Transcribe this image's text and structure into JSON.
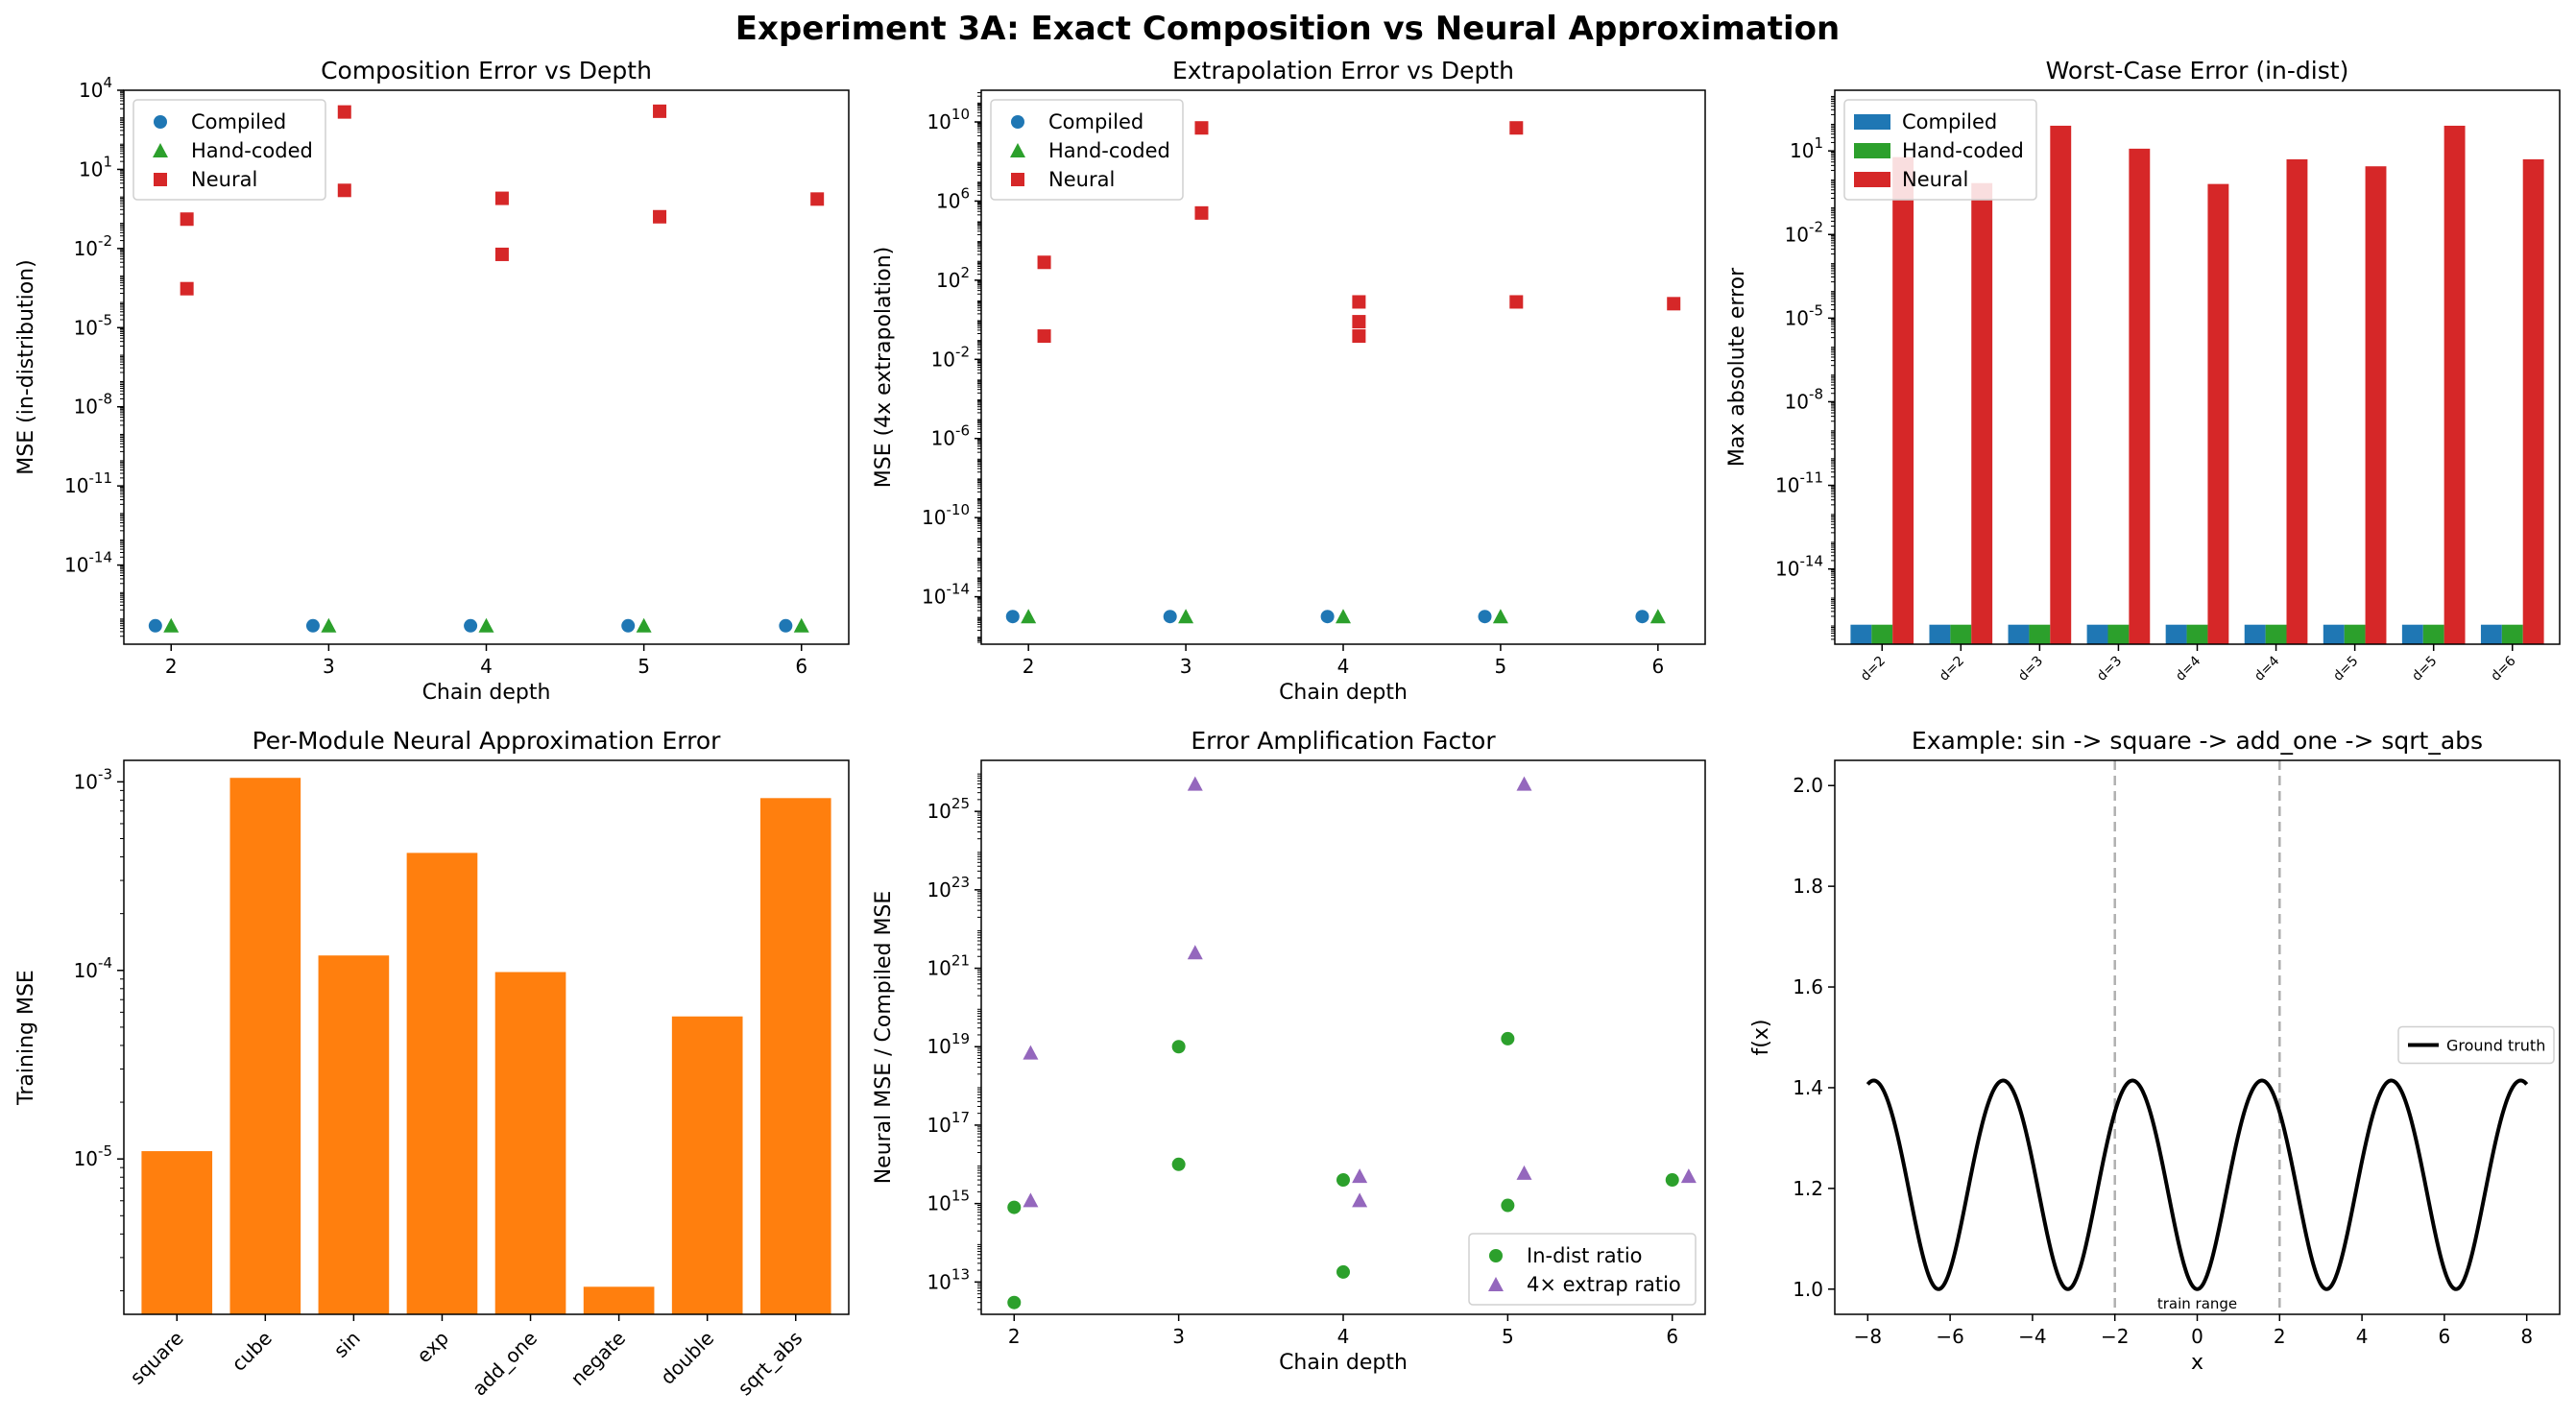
{
  "figure": {
    "suptitle": "Experiment 3A: Exact Composition vs Neural Approximation"
  },
  "colors": {
    "compiled": "#1f77b4",
    "handcoded": "#2ca02c",
    "neural": "#d62728",
    "orange": "#ff7f0e",
    "purple": "#9467bd",
    "green": "#2ca02c"
  },
  "chart_data": [
    {
      "id": "p1",
      "type": "scatter",
      "title": "Composition Error vs Depth",
      "xlabel": "Chain depth",
      "ylabel": "MSE (in-distribution)",
      "yscale": "log",
      "xlim": [
        1.7,
        6.3
      ],
      "ylim": [
        1e-17,
        10000
      ],
      "xticks": [
        2,
        3,
        4,
        5,
        6
      ],
      "yticks": [
        -14,
        -11,
        -8,
        -5,
        -2,
        1,
        4
      ],
      "legend": {
        "position": "top-left"
      },
      "series": [
        {
          "name": "Compiled",
          "marker": "circle",
          "color": "compiled",
          "points": [
            [
              1.9,
              5e-17
            ],
            [
              2.9,
              5e-17
            ],
            [
              3.9,
              5e-17
            ],
            [
              4.9,
              5e-17
            ],
            [
              5.9,
              5e-17
            ]
          ]
        },
        {
          "name": "Hand-coded",
          "marker": "triangle",
          "color": "handcoded",
          "points": [
            [
              2.0,
              5e-17
            ],
            [
              3.0,
              5e-17
            ],
            [
              4.0,
              5e-17
            ],
            [
              5.0,
              5e-17
            ],
            [
              6.0,
              5e-17
            ]
          ]
        },
        {
          "name": "Neural",
          "marker": "square",
          "color": "neural",
          "points": [
            [
              2.1,
              0.13
            ],
            [
              2.1,
              0.0003
            ],
            [
              3.1,
              1500
            ],
            [
              3.1,
              1.6
            ],
            [
              4.1,
              0.8
            ],
            [
              4.1,
              0.006
            ],
            [
              5.1,
              1600
            ],
            [
              5.1,
              0.16
            ],
            [
              6.1,
              0.75
            ]
          ]
        }
      ]
    },
    {
      "id": "p2",
      "type": "scatter",
      "title": "Extrapolation Error vs Depth",
      "xlabel": "Chain depth",
      "ylabel": "MSE (4x extrapolation)",
      "yscale": "log",
      "xlim": [
        1.7,
        6.3
      ],
      "ylim": [
        4e-17,
        400000000000.0
      ],
      "xticks": [
        2,
        3,
        4,
        5,
        6
      ],
      "yticks": [
        -14,
        -10,
        -6,
        -2,
        2,
        6,
        10
      ],
      "legend": {
        "position": "top-left"
      },
      "series": [
        {
          "name": "Compiled",
          "marker": "circle",
          "color": "compiled",
          "points": [
            [
              1.9,
              1e-15
            ],
            [
              2.9,
              1e-15
            ],
            [
              3.9,
              1e-15
            ],
            [
              4.9,
              1e-15
            ],
            [
              5.9,
              1e-15
            ]
          ]
        },
        {
          "name": "Hand-coded",
          "marker": "triangle",
          "color": "handcoded",
          "points": [
            [
              2.0,
              1e-15
            ],
            [
              3.0,
              1e-15
            ],
            [
              4.0,
              1e-15
            ],
            [
              5.0,
              1e-15
            ],
            [
              6.0,
              1e-15
            ]
          ]
        },
        {
          "name": "Neural",
          "marker": "square",
          "color": "neural",
          "points": [
            [
              2.1,
              800
            ],
            [
              2.1,
              0.15
            ],
            [
              3.1,
              5000000000.0
            ],
            [
              3.1,
              250000.0
            ],
            [
              4.1,
              8
            ],
            [
              4.1,
              0.8
            ],
            [
              4.1,
              0.15
            ],
            [
              5.1,
              5000000000.0
            ],
            [
              5.1,
              8
            ],
            [
              6.1,
              6.5
            ]
          ]
        }
      ]
    },
    {
      "id": "p3",
      "type": "bar",
      "title": "Worst-Case Error (in-dist)",
      "xlabel": "",
      "ylabel": "Max absolute error",
      "yscale": "log",
      "ylim": [
        2e-17,
        1500
      ],
      "ybase": 2e-17,
      "yticks": [
        -14,
        -11,
        -8,
        -5,
        -2,
        1
      ],
      "legend": {
        "position": "top-left"
      },
      "categories": [
        "d=2",
        "d=2",
        "d=3",
        "d=3",
        "d=4",
        "d=4",
        "d=5",
        "d=5",
        "d=6"
      ],
      "series": [
        {
          "name": "Compiled",
          "color": "compiled",
          "values": [
            1e-16,
            1e-16,
            1e-16,
            1e-16,
            1e-16,
            1e-16,
            1e-16,
            1e-16,
            1e-16
          ]
        },
        {
          "name": "Hand-coded",
          "color": "handcoded",
          "values": [
            1e-16,
            1e-16,
            1e-16,
            1e-16,
            1e-16,
            1e-16,
            1e-16,
            1e-16,
            1e-16
          ]
        },
        {
          "name": "Neural",
          "color": "neural",
          "values": [
            6,
            0.7,
            80,
            12,
            0.65,
            5,
            2.8,
            80,
            5
          ]
        }
      ]
    },
    {
      "id": "p4",
      "type": "bar",
      "title": "Per-Module Neural Approximation Error",
      "xlabel": "",
      "ylabel": "Training MSE",
      "yscale": "log",
      "ylim": [
        1.5e-06,
        0.0013
      ],
      "ybase": 1.5e-06,
      "yticks": [
        -5,
        -4,
        -3
      ],
      "categories": [
        "square",
        "cube",
        "sin",
        "exp",
        "add_one",
        "negate",
        "double",
        "sqrt_abs"
      ],
      "series": [
        {
          "name": "",
          "color": "orange",
          "values": [
            1.1e-05,
            0.00105,
            0.00012,
            0.00042,
            9.8e-05,
            2.1e-06,
            5.7e-05,
            0.00082
          ]
        }
      ]
    },
    {
      "id": "p5",
      "type": "scatter",
      "title": "Error Amplification Factor",
      "xlabel": "Chain depth",
      "ylabel": "Neural MSE / Compiled MSE",
      "yscale": "log",
      "xlim": [
        1.8,
        6.2
      ],
      "ylim": [
        1500000000000.0,
        2e+26
      ],
      "xticks": [
        2,
        3,
        4,
        5,
        6
      ],
      "yticks": [
        13,
        15,
        17,
        19,
        21,
        23,
        25
      ],
      "legend": {
        "position": "bottom-right"
      },
      "series": [
        {
          "name": "In-dist ratio",
          "marker": "circle",
          "color": "green",
          "points": [
            [
              2,
              800000000000000.0
            ],
            [
              2,
              3000000000000.0
            ],
            [
              3,
              1e+19
            ],
            [
              3,
              1e+16
            ],
            [
              4,
              4000000000000000.0
            ],
            [
              4,
              18000000000000.0
            ],
            [
              5,
              1.6e+19
            ],
            [
              5,
              900000000000000.0
            ],
            [
              6,
              4000000000000000.0
            ]
          ]
        },
        {
          "name": "4× extrap ratio",
          "marker": "triangle",
          "color": "purple",
          "points": [
            [
              2.1,
              7e+18
            ],
            [
              2.1,
              1200000000000000.0
            ],
            [
              3.1,
              5e+25
            ],
            [
              3.1,
              2.5e+21
            ],
            [
              4.1,
              5000000000000000.0
            ],
            [
              4.1,
              1200000000000000.0
            ],
            [
              5.1,
              5e+25
            ],
            [
              5.1,
              6000000000000000.0
            ],
            [
              6.1,
              5000000000000000.0
            ]
          ]
        }
      ]
    },
    {
      "id": "p6",
      "type": "line",
      "title": "Example: sin -> square -> add_one -> sqrt_abs",
      "xlabel": "x",
      "ylabel": "f(x)",
      "xlim": [
        -8.8,
        8.8
      ],
      "ylim": [
        0.95,
        2.05
      ],
      "xticks": [
        -8,
        -6,
        -4,
        -2,
        0,
        2,
        4,
        6,
        8
      ],
      "yticks": [
        1.0,
        1.2,
        1.4,
        1.6,
        1.8,
        2.0
      ],
      "legend": {
        "position": "center-right"
      },
      "series": [
        {
          "name": "Ground truth",
          "color": "#000000",
          "function": "sqrt(sin(x)^2 + 1)",
          "x_range": [
            -8,
            8
          ]
        }
      ],
      "vlines": [
        -2,
        2
      ],
      "annotation": "train range"
    }
  ]
}
